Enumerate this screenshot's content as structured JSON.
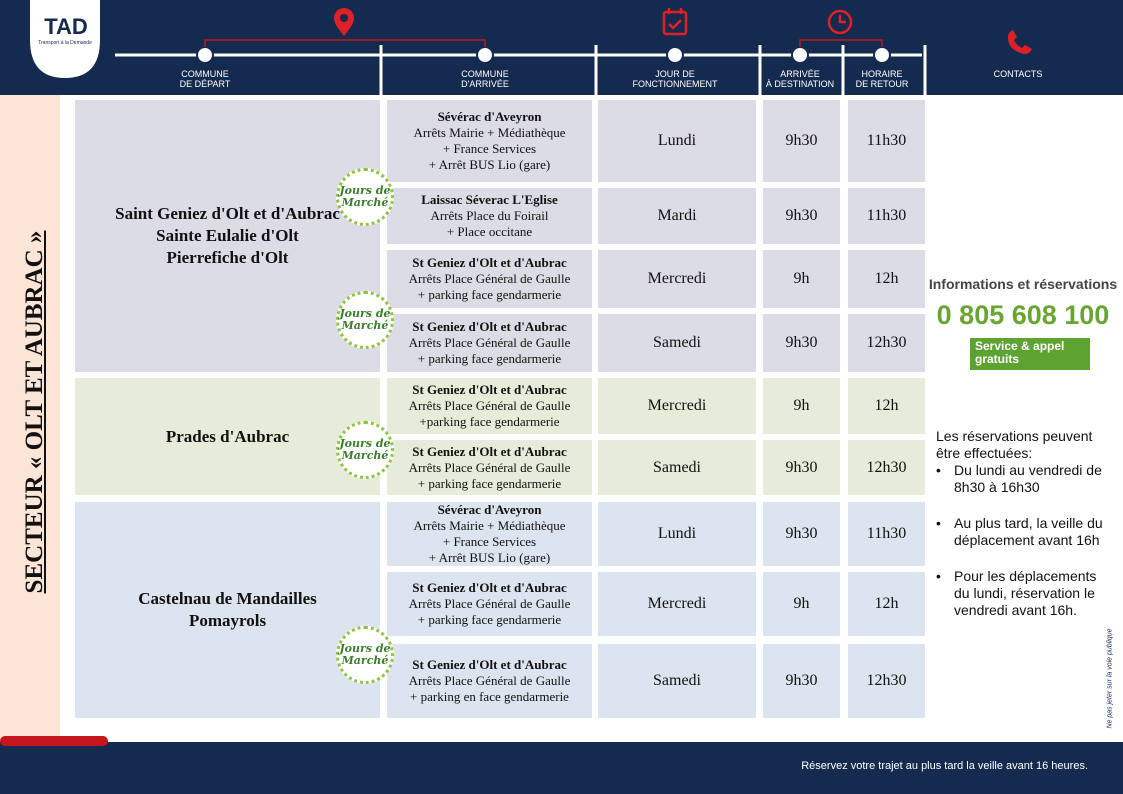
{
  "logo": {
    "name": "TAD",
    "tagline": "Transport à la Demande"
  },
  "header": {
    "columns": [
      [
        "COMMUNE",
        "DE DÉPART"
      ],
      [
        "COMMUNE",
        "D'ARRIVÉE"
      ],
      [
        "JOUR DE",
        "FONCTIONNEMENT"
      ],
      [
        "ARRIVÉE",
        "À DESTINATION"
      ],
      [
        "HORAIRE",
        "DE RETOUR"
      ],
      [
        "CONTACTS"
      ]
    ]
  },
  "sector": "SECTEUR « OLT ET AUBRAC »",
  "badge": [
    "Jours de",
    "Marché"
  ],
  "groups": [
    {
      "departure": [
        "Saint Geniez d'Olt et d'Aubrac",
        "Sainte Eulalie d'Olt",
        "Pierrefiche d'Olt"
      ],
      "trips": [
        {
          "arrival": {
            "title": "Sévérac d'Aveyron",
            "lines": [
              "Arrêts Mairie + Médiathèque",
              "+ France Services",
              "+ Arrêt BUS Lio (gare)"
            ]
          },
          "day": "Lundi",
          "arrival_time": "9h30",
          "return_time": "11h30"
        },
        {
          "arrival": {
            "title": "Laissac Séverac L'Eglise",
            "lines": [
              "Arrêts Place du Foirail",
              "+ Place occitane"
            ]
          },
          "day": "Mardi",
          "arrival_time": "9h30",
          "return_time": "11h30"
        },
        {
          "arrival": {
            "title": "St Geniez d'Olt et d'Aubrac",
            "lines": [
              "Arrêts Place Général de Gaulle",
              "+ parking face gendarmerie"
            ]
          },
          "day": "Mercredi",
          "arrival_time": "9h",
          "return_time": "12h"
        },
        {
          "arrival": {
            "title": "St Geniez d'Olt et d'Aubrac",
            "lines": [
              "Arrêts Place Général de Gaulle",
              "+ parking face gendarmerie"
            ]
          },
          "day": "Samedi",
          "arrival_time": "9h30",
          "return_time": "12h30"
        }
      ]
    },
    {
      "departure": [
        "Prades d'Aubrac"
      ],
      "trips": [
        {
          "arrival": {
            "title": "St Geniez d'Olt et d'Aubrac",
            "lines": [
              "Arrêts Place Général de Gaulle",
              "+parking  face gendarmerie"
            ]
          },
          "day": "Mercredi",
          "arrival_time": "9h",
          "return_time": "12h"
        },
        {
          "arrival": {
            "title": "St Geniez d'Olt et d'Aubrac",
            "lines": [
              "Arrêts Place Général de Gaulle",
              "+ parking face gendarmerie"
            ]
          },
          "day": "Samedi",
          "arrival_time": "9h30",
          "return_time": "12h30"
        }
      ]
    },
    {
      "departure": [
        "Castelnau de Mandailles",
        "Pomayrols"
      ],
      "trips": [
        {
          "arrival": {
            "title": "Sévérac d'Aveyron",
            "lines": [
              "Arrêts Mairie + Médiathèque",
              "+ France Services",
              "+ Arrêt BUS Lio (gare)"
            ]
          },
          "day": "Lundi",
          "arrival_time": "9h30",
          "return_time": "11h30"
        },
        {
          "arrival": {
            "title": "St Geniez d'Olt et d'Aubrac",
            "lines": [
              "Arrêts Place Général de Gaulle",
              "+ parking face gendarmerie"
            ]
          },
          "day": "Mercredi",
          "arrival_time": "9h",
          "return_time": "12h"
        },
        {
          "arrival": {
            "title": "St Geniez d'Olt et d'Aubrac",
            "lines": [
              "Arrêts Place Général de Gaulle",
              "+ parking en face gendarmerie"
            ]
          },
          "day": "Samedi",
          "arrival_time": "9h30",
          "return_time": "12h30"
        }
      ]
    }
  ],
  "contact": {
    "heading": "Informations et réservations",
    "phone": "0 805 608 100",
    "note": "Service & appel gratuits"
  },
  "reservations": {
    "intro": "Les réservations peuvent être effectuées:",
    "items": [
      "Du lundi au vendredi de 8h30 à 16h30",
      "Au plus tard, la veille du déplacement avant 16h",
      "Pour les déplacements du lundi, réservation le vendredi avant 16h."
    ]
  },
  "litter_notice": "Ne pas jeter sur la voie publique",
  "footer": "Réservez votre trajet au plus  tard la  veille  avant 16 heures."
}
